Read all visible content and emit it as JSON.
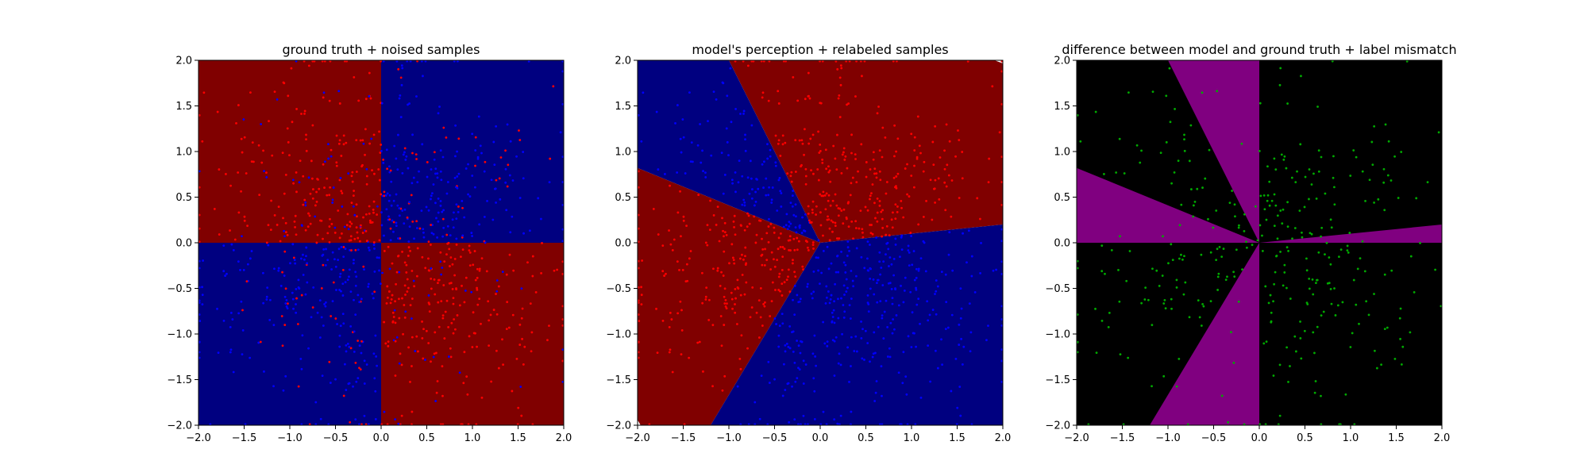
{
  "chart_data": [
    {
      "type": "scatter",
      "title": "ground truth + noised samples",
      "xlim": [
        -2.0,
        2.0
      ],
      "ylim": [
        -2.0,
        2.0
      ],
      "xticks": [
        "−2.0",
        "−1.5",
        "−1.0",
        "−0.5",
        "0.0",
        "0.5",
        "1.0",
        "1.5",
        "2.0"
      ],
      "yticks": [
        "−2.0",
        "−1.5",
        "−1.0",
        "−0.5",
        "0.0",
        "0.5",
        "1.0",
        "1.5",
        "2.0"
      ],
      "tick_values": [
        -2.0,
        -1.5,
        -1.0,
        -0.5,
        0.0,
        0.5,
        1.0,
        1.5,
        2.0
      ],
      "grid": false,
      "background": "regions of a 2x2 checkerboard split at x=0 and y=0; x*y>0 class A, x*y<0 class B",
      "region_colors": {
        "class_a": "#000080",
        "class_b": "#800000"
      },
      "regions": [
        {
          "name": "Q1",
          "x": [
            0,
            2
          ],
          "y": [
            0,
            2
          ],
          "color": "#000080"
        },
        {
          "name": "Q2",
          "x": [
            -2,
            0
          ],
          "y": [
            0,
            2
          ],
          "color": "#800000"
        },
        {
          "name": "Q3",
          "x": [
            -2,
            0
          ],
          "y": [
            -2,
            0
          ],
          "color": "#000080"
        },
        {
          "name": "Q4",
          "x": [
            0,
            2
          ],
          "y": [
            -2,
            0
          ],
          "color": "#800000"
        }
      ],
      "point_colors": {
        "a": "#ff0000",
        "b": "#0000ff"
      },
      "approx_point_count": 1000
    },
    {
      "type": "scatter",
      "title": "model's perception + relabeled samples",
      "xlim": [
        -2.0,
        2.0
      ],
      "ylim": [
        -2.0,
        2.0
      ],
      "xticks": [
        "−2.0",
        "−1.5",
        "−1.0",
        "−0.5",
        "0.0",
        "0.5",
        "1.0",
        "1.5",
        "2.0"
      ],
      "yticks": [
        "−2.0",
        "−1.5",
        "−1.0",
        "−0.5",
        "0.0",
        "0.5",
        "1.0",
        "1.5",
        "2.0"
      ],
      "tick_values": [
        -2.0,
        -1.5,
        -1.0,
        -0.5,
        0.0,
        0.5,
        1.0,
        1.5,
        2.0
      ],
      "grid": false,
      "decision_boundaries_through_origin": [
        {
          "from": [
            -0.0,
            0.0
          ],
          "to": [
            -1.2,
            -2.0
          ]
        },
        {
          "from": [
            -0.0,
            0.0
          ],
          "to": [
            -2.0,
            0.82
          ]
        },
        {
          "from": [
            -0.0,
            0.0
          ],
          "to": [
            -1.0,
            2.0
          ]
        },
        {
          "from": [
            -0.0,
            0.0
          ],
          "to": [
            2.0,
            0.2
          ]
        }
      ],
      "region_colors": {
        "red": "#800000",
        "blue": "#000080"
      },
      "point_colors": {
        "red": "#ff0000",
        "blue": "#0000ff"
      },
      "approx_point_count": 1000
    },
    {
      "type": "scatter",
      "title": "difference between model and ground truth + label mismatch",
      "xlim": [
        -2.0,
        2.0
      ],
      "ylim": [
        -2.0,
        2.0
      ],
      "xticks": [
        "−2.0",
        "−1.5",
        "−1.0",
        "−0.5",
        "0.0",
        "0.5",
        "1.0",
        "1.5",
        "2.0"
      ],
      "yticks": [
        "−2.0",
        "−1.5",
        "−1.0",
        "−0.5",
        "0.0",
        "0.5",
        "1.0",
        "1.5",
        "2.0"
      ],
      "tick_values": [
        -2.0,
        -1.5,
        -1.0,
        -0.5,
        0.0,
        0.5,
        1.0,
        1.5,
        2.0
      ],
      "grid": false,
      "region_colors": {
        "match": "#000000",
        "mismatch": "#800080"
      },
      "point_color": "#00aa00",
      "approx_point_count": 400
    }
  ]
}
